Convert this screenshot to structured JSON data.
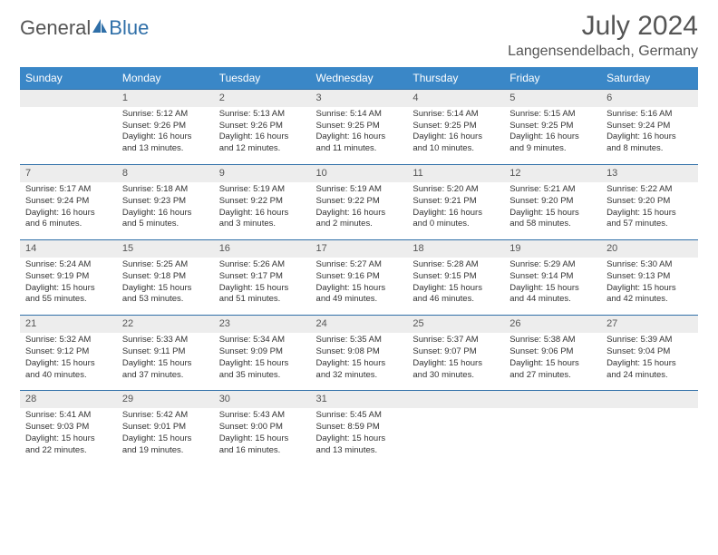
{
  "logo": {
    "part1": "General",
    "part2": "Blue"
  },
  "title": "July 2024",
  "location": "Langensendelbach, Germany",
  "header_bg": "#3a87c7",
  "accent": "#2f6fa8",
  "weekdays": [
    "Sunday",
    "Monday",
    "Tuesday",
    "Wednesday",
    "Thursday",
    "Friday",
    "Saturday"
  ],
  "weeks": [
    {
      "nums": [
        "",
        "1",
        "2",
        "3",
        "4",
        "5",
        "6"
      ],
      "cells": [
        {
          "sunrise": "",
          "sunset": "",
          "daylight": ""
        },
        {
          "sunrise": "Sunrise: 5:12 AM",
          "sunset": "Sunset: 9:26 PM",
          "daylight": "Daylight: 16 hours and 13 minutes."
        },
        {
          "sunrise": "Sunrise: 5:13 AM",
          "sunset": "Sunset: 9:26 PM",
          "daylight": "Daylight: 16 hours and 12 minutes."
        },
        {
          "sunrise": "Sunrise: 5:14 AM",
          "sunset": "Sunset: 9:25 PM",
          "daylight": "Daylight: 16 hours and 11 minutes."
        },
        {
          "sunrise": "Sunrise: 5:14 AM",
          "sunset": "Sunset: 9:25 PM",
          "daylight": "Daylight: 16 hours and 10 minutes."
        },
        {
          "sunrise": "Sunrise: 5:15 AM",
          "sunset": "Sunset: 9:25 PM",
          "daylight": "Daylight: 16 hours and 9 minutes."
        },
        {
          "sunrise": "Sunrise: 5:16 AM",
          "sunset": "Sunset: 9:24 PM",
          "daylight": "Daylight: 16 hours and 8 minutes."
        }
      ]
    },
    {
      "nums": [
        "7",
        "8",
        "9",
        "10",
        "11",
        "12",
        "13"
      ],
      "cells": [
        {
          "sunrise": "Sunrise: 5:17 AM",
          "sunset": "Sunset: 9:24 PM",
          "daylight": "Daylight: 16 hours and 6 minutes."
        },
        {
          "sunrise": "Sunrise: 5:18 AM",
          "sunset": "Sunset: 9:23 PM",
          "daylight": "Daylight: 16 hours and 5 minutes."
        },
        {
          "sunrise": "Sunrise: 5:19 AM",
          "sunset": "Sunset: 9:22 PM",
          "daylight": "Daylight: 16 hours and 3 minutes."
        },
        {
          "sunrise": "Sunrise: 5:19 AM",
          "sunset": "Sunset: 9:22 PM",
          "daylight": "Daylight: 16 hours and 2 minutes."
        },
        {
          "sunrise": "Sunrise: 5:20 AM",
          "sunset": "Sunset: 9:21 PM",
          "daylight": "Daylight: 16 hours and 0 minutes."
        },
        {
          "sunrise": "Sunrise: 5:21 AM",
          "sunset": "Sunset: 9:20 PM",
          "daylight": "Daylight: 15 hours and 58 minutes."
        },
        {
          "sunrise": "Sunrise: 5:22 AM",
          "sunset": "Sunset: 9:20 PM",
          "daylight": "Daylight: 15 hours and 57 minutes."
        }
      ]
    },
    {
      "nums": [
        "14",
        "15",
        "16",
        "17",
        "18",
        "19",
        "20"
      ],
      "cells": [
        {
          "sunrise": "Sunrise: 5:24 AM",
          "sunset": "Sunset: 9:19 PM",
          "daylight": "Daylight: 15 hours and 55 minutes."
        },
        {
          "sunrise": "Sunrise: 5:25 AM",
          "sunset": "Sunset: 9:18 PM",
          "daylight": "Daylight: 15 hours and 53 minutes."
        },
        {
          "sunrise": "Sunrise: 5:26 AM",
          "sunset": "Sunset: 9:17 PM",
          "daylight": "Daylight: 15 hours and 51 minutes."
        },
        {
          "sunrise": "Sunrise: 5:27 AM",
          "sunset": "Sunset: 9:16 PM",
          "daylight": "Daylight: 15 hours and 49 minutes."
        },
        {
          "sunrise": "Sunrise: 5:28 AM",
          "sunset": "Sunset: 9:15 PM",
          "daylight": "Daylight: 15 hours and 46 minutes."
        },
        {
          "sunrise": "Sunrise: 5:29 AM",
          "sunset": "Sunset: 9:14 PM",
          "daylight": "Daylight: 15 hours and 44 minutes."
        },
        {
          "sunrise": "Sunrise: 5:30 AM",
          "sunset": "Sunset: 9:13 PM",
          "daylight": "Daylight: 15 hours and 42 minutes."
        }
      ]
    },
    {
      "nums": [
        "21",
        "22",
        "23",
        "24",
        "25",
        "26",
        "27"
      ],
      "cells": [
        {
          "sunrise": "Sunrise: 5:32 AM",
          "sunset": "Sunset: 9:12 PM",
          "daylight": "Daylight: 15 hours and 40 minutes."
        },
        {
          "sunrise": "Sunrise: 5:33 AM",
          "sunset": "Sunset: 9:11 PM",
          "daylight": "Daylight: 15 hours and 37 minutes."
        },
        {
          "sunrise": "Sunrise: 5:34 AM",
          "sunset": "Sunset: 9:09 PM",
          "daylight": "Daylight: 15 hours and 35 minutes."
        },
        {
          "sunrise": "Sunrise: 5:35 AM",
          "sunset": "Sunset: 9:08 PM",
          "daylight": "Daylight: 15 hours and 32 minutes."
        },
        {
          "sunrise": "Sunrise: 5:37 AM",
          "sunset": "Sunset: 9:07 PM",
          "daylight": "Daylight: 15 hours and 30 minutes."
        },
        {
          "sunrise": "Sunrise: 5:38 AM",
          "sunset": "Sunset: 9:06 PM",
          "daylight": "Daylight: 15 hours and 27 minutes."
        },
        {
          "sunrise": "Sunrise: 5:39 AM",
          "sunset": "Sunset: 9:04 PM",
          "daylight": "Daylight: 15 hours and 24 minutes."
        }
      ]
    },
    {
      "nums": [
        "28",
        "29",
        "30",
        "31",
        "",
        "",
        ""
      ],
      "cells": [
        {
          "sunrise": "Sunrise: 5:41 AM",
          "sunset": "Sunset: 9:03 PM",
          "daylight": "Daylight: 15 hours and 22 minutes."
        },
        {
          "sunrise": "Sunrise: 5:42 AM",
          "sunset": "Sunset: 9:01 PM",
          "daylight": "Daylight: 15 hours and 19 minutes."
        },
        {
          "sunrise": "Sunrise: 5:43 AM",
          "sunset": "Sunset: 9:00 PM",
          "daylight": "Daylight: 15 hours and 16 minutes."
        },
        {
          "sunrise": "Sunrise: 5:45 AM",
          "sunset": "Sunset: 8:59 PM",
          "daylight": "Daylight: 15 hours and 13 minutes."
        },
        {
          "sunrise": "",
          "sunset": "",
          "daylight": ""
        },
        {
          "sunrise": "",
          "sunset": "",
          "daylight": ""
        },
        {
          "sunrise": "",
          "sunset": "",
          "daylight": ""
        }
      ]
    }
  ]
}
